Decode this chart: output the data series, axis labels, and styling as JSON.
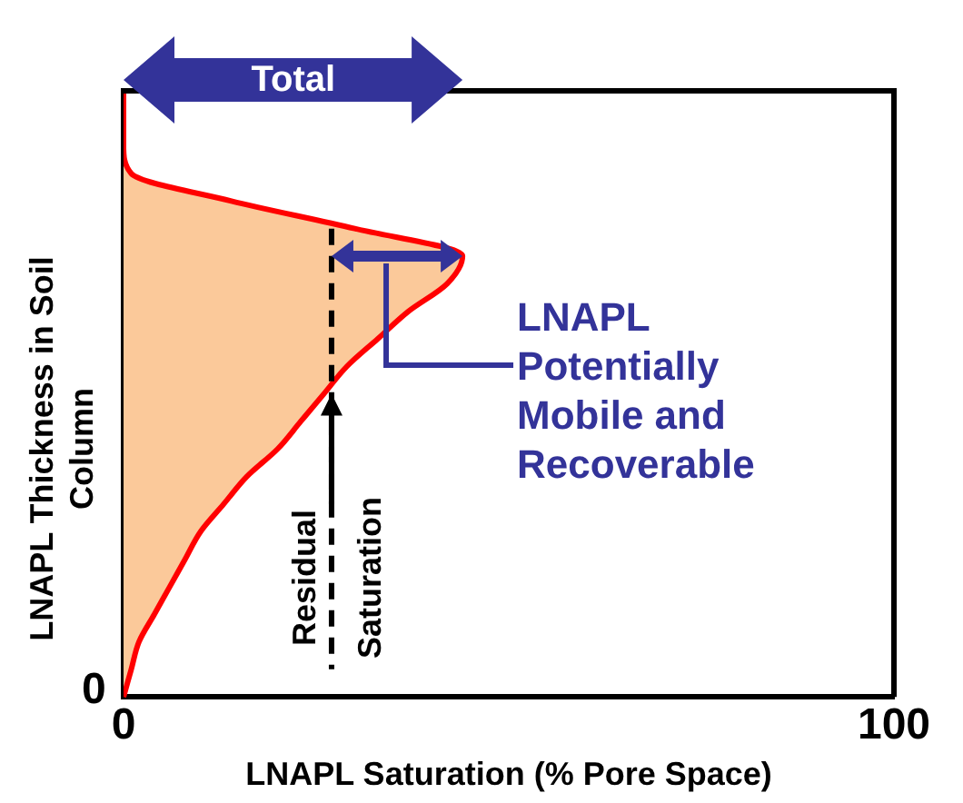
{
  "chart_data": {
    "type": "area",
    "orientation": "horizontal",
    "xlabel": "LNAPL Saturation (% Pore Space)",
    "ylabel": "LNAPL Thickness in Soil Column",
    "categories": [
      null,
      null,
      null,
      null,
      null,
      null,
      null,
      null,
      null,
      null,
      null,
      null,
      null,
      null,
      null,
      null,
      null,
      null,
      null,
      null,
      null,
      null,
      null
    ],
    "series": [
      {
        "color": "#ff0000",
        "values": [
          0,
          0,
          0,
          1,
          14,
          30,
          44,
          42,
          37,
          33,
          29,
          26,
          23,
          20,
          16,
          13,
          10,
          8,
          6,
          4,
          2,
          1,
          0
        ]
      }
    ],
    "xlim": [
      0,
      100
    ],
    "xticks": [
      0,
      100
    ],
    "tick_labels": "x",
    "ref_lines": [
      {
        "axis": "x",
        "value": 27,
        "label": "Residual Saturation",
        "color": "#000000",
        "line_style": "dashed"
      }
    ],
    "annotations": [
      "Total",
      "LNAPL Potentially Mobile and Recoverable",
      "0"
    ]
  }
}
